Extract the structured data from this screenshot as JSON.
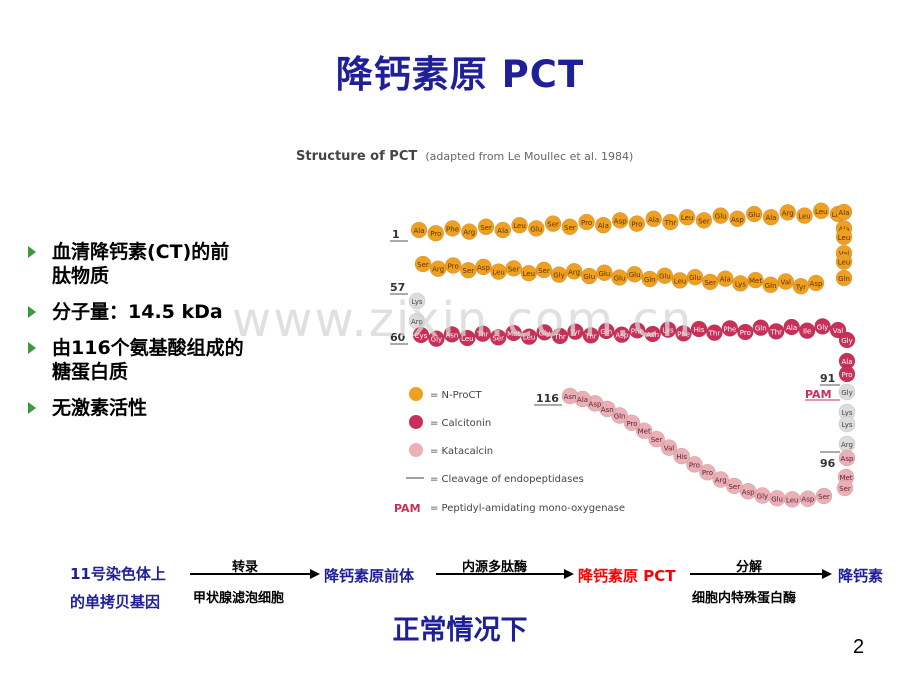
{
  "slide": {
    "title": "降钙素原  PCT",
    "watermark": "www.zixin.com.cn",
    "page_number": "2"
  },
  "bullets": [
    {
      "line1": "血清降钙素(CT)的前",
      "line2": "肽物质"
    },
    {
      "line1": "分子量：14.5 kDa",
      "line2": ""
    },
    {
      "line1": "由116个氨基酸组成的",
      "line2": "糖蛋白质"
    },
    {
      "line1": "无激素活性",
      "line2": ""
    }
  ],
  "figure": {
    "title_bold": "Structure of PCT",
    "title_light": "(adapted from Le Moullec et al. 1984)",
    "markers": {
      "m1": "1",
      "m57": "57",
      "m60": "60",
      "m91": "91",
      "m96": "96",
      "m116": "116",
      "pam": "PAM"
    },
    "legend": {
      "nprocalc": "= N-ProCT",
      "calcitonin": "= Calcitonin",
      "katacalcin": "= Katacalcin",
      "cleavage": "= Cleavage of endopeptidases",
      "pam_key": "PAM",
      "pam_text": "= Peptidyl-amidating mono-oxygenase"
    },
    "colors": {
      "nproct": "#f0a020",
      "calcitonin": "#c8305a",
      "katacalcin": "#eab0b6",
      "pam": "#c8305a",
      "gray": "#dcdcdc"
    },
    "residues": {
      "row1": [
        "Ala",
        "Pro",
        "Phe",
        "Arg",
        "Ser",
        "Ala",
        "Leu",
        "Glu",
        "Ser",
        "Ser",
        "Pro",
        "Ala",
        "Asp",
        "Pro",
        "Ala",
        "Thr",
        "Leu",
        "Ser",
        "Glu",
        "Asp",
        "Glu",
        "Ala",
        "Arg",
        "Leu",
        "Leu",
        "Leu"
      ],
      "right1": [
        "Ala",
        "Ala",
        "Leu",
        "Val",
        "Leu",
        "Gln"
      ],
      "row2": [
        "Asp",
        "Tyr",
        "Val",
        "Gln",
        "Met",
        "Lys",
        "Ala",
        "Ser",
        "Glu",
        "Leu",
        "Glu",
        "Gln",
        "Glu",
        "Glu",
        "Glu",
        "Glu",
        "Arg",
        "Gly",
        "Ser",
        "Leu",
        "Ser",
        "Leu",
        "Asp",
        "Ser",
        "Pro",
        "Arg",
        "Ser"
      ],
      "left2": [
        "Lys",
        "Arg"
      ],
      "row3": [
        "Cys",
        "Gly",
        "Asn",
        "Leu",
        "Thr",
        "Ser",
        "Met",
        "Leu",
        "Gly",
        "Thr",
        "Tyr",
        "Thr",
        "Gln",
        "Asp",
        "Phe",
        "Asn",
        "Lys",
        "Phe",
        "His",
        "Thr",
        "Phe",
        "Pro",
        "Gln",
        "Thr",
        "Ala",
        "Ile",
        "Gly",
        "Val"
      ],
      "right3": [
        "Gly",
        "Ala",
        "Pro"
      ],
      "right4": [
        "Gly",
        "Lys",
        "Lys",
        "Arg"
      ],
      "right5": [
        "Asp",
        "Met",
        "Ser"
      ],
      "tail": [
        "Ser",
        "Asp",
        "Leu",
        "Glu",
        "Gly",
        "Asp",
        "Ser",
        "Arg",
        "Pro",
        "Pro",
        "His",
        "Val",
        "Ser",
        "Met",
        "Pro",
        "Gln",
        "Asn",
        "Asp",
        "Ala",
        "Asn"
      ]
    }
  },
  "flow": {
    "source_line1": "11号染色体上",
    "source_line2": "的单拷贝基因",
    "step1_above": "转录",
    "step1_below": "甲状腺滤泡细胞",
    "intermediate": "降钙素原前体",
    "step2_above": "内源多肽酶",
    "product": "降钙素原 PCT",
    "step3_above": "分解",
    "step3_below": "细胞内特殊蛋白酶",
    "final": "降钙素"
  },
  "footer": {
    "heading": "正常情况下"
  }
}
